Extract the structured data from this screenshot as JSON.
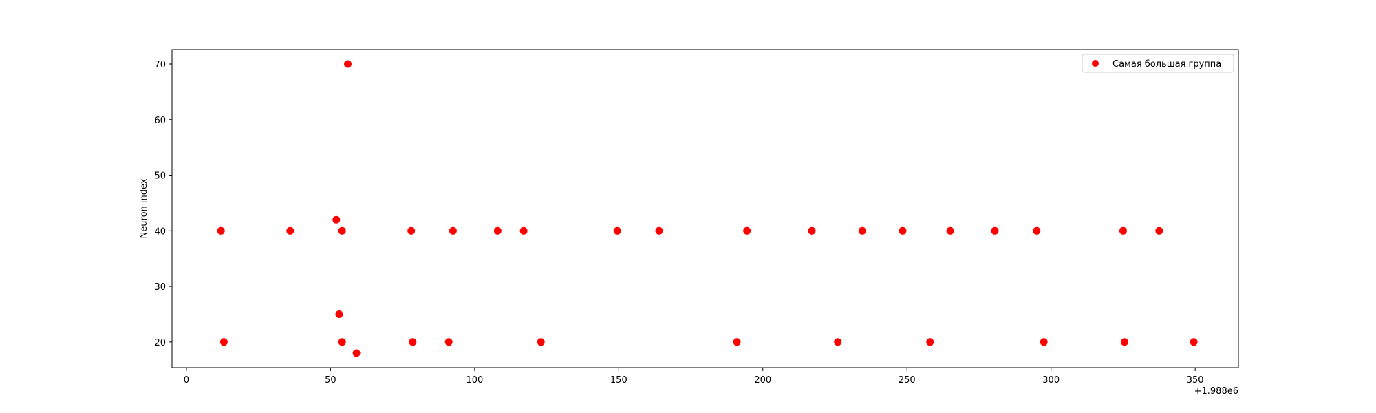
{
  "chart_data": {
    "type": "scatter",
    "title": "",
    "xlabel": "",
    "ylabel": "Neuron index",
    "x_offset_label": "+1.988e6",
    "xlim": [
      -5,
      365
    ],
    "ylim": [
      15.4,
      72.6
    ],
    "x_ticks": [
      0,
      50,
      100,
      150,
      200,
      250,
      300,
      350
    ],
    "y_ticks": [
      20,
      30,
      40,
      50,
      60,
      70
    ],
    "grid": false,
    "legend": {
      "placement": "top-right",
      "entries": [
        "Самая большая группа"
      ]
    },
    "series": [
      {
        "name": "Самая большая группа",
        "color": "#ff0000",
        "points": [
          [
            12,
            40
          ],
          [
            13,
            20
          ],
          [
            36,
            40
          ],
          [
            52,
            42
          ],
          [
            53,
            25
          ],
          [
            54,
            40
          ],
          [
            54,
            20
          ],
          [
            56,
            70
          ],
          [
            59,
            18
          ],
          [
            78,
            40
          ],
          [
            78.5,
            20
          ],
          [
            91,
            20
          ],
          [
            92.5,
            40
          ],
          [
            108,
            40
          ],
          [
            117,
            40
          ],
          [
            123,
            20
          ],
          [
            149.5,
            40
          ],
          [
            164,
            40
          ],
          [
            191,
            20
          ],
          [
            194.5,
            40
          ],
          [
            217,
            40
          ],
          [
            226,
            20
          ],
          [
            234.5,
            40
          ],
          [
            248.5,
            40
          ],
          [
            258,
            20
          ],
          [
            265,
            40
          ],
          [
            280.5,
            40
          ],
          [
            295,
            40
          ],
          [
            297.5,
            20
          ],
          [
            325,
            40
          ],
          [
            325.5,
            20
          ],
          [
            337.5,
            40
          ],
          [
            349.5,
            20
          ]
        ]
      }
    ]
  }
}
